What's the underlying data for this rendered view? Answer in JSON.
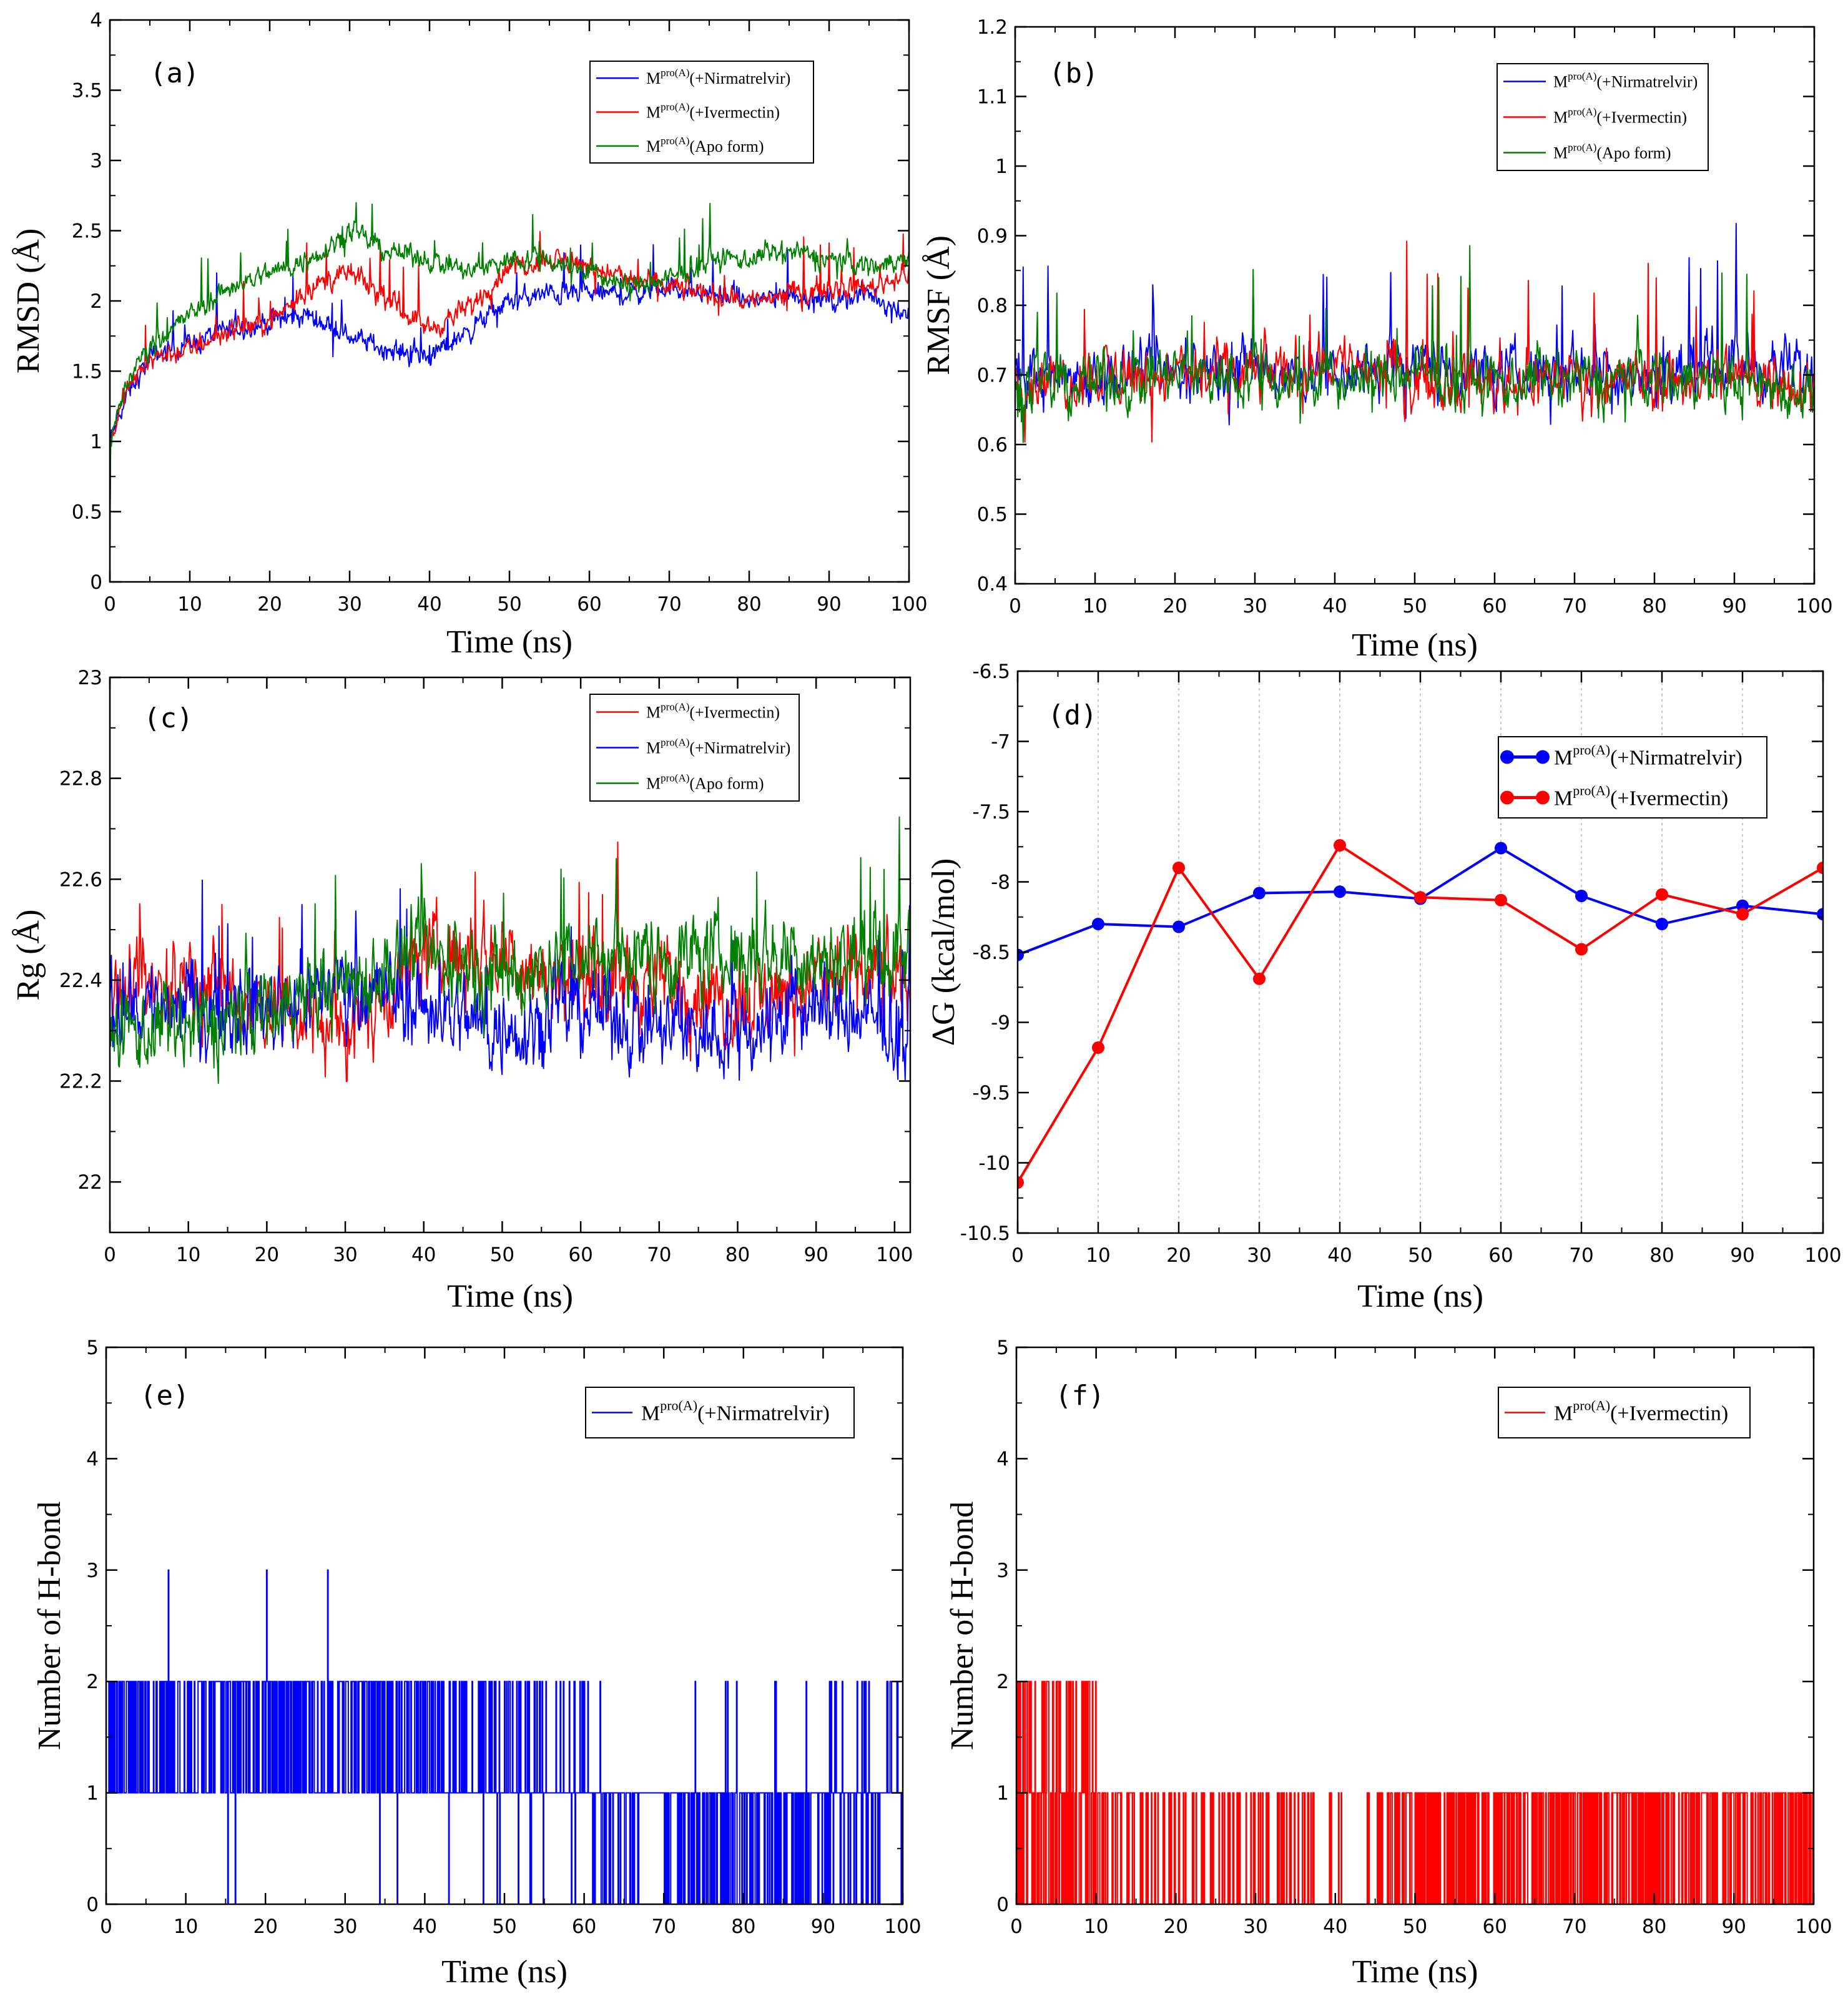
{
  "figure": {
    "description_panels": [
      "a",
      "b",
      "c",
      "d",
      "e",
      "f"
    ]
  },
  "legend_parts": {
    "base": "M",
    "superscript": "pro(A)"
  },
  "colors": {
    "nirmatrelvir": "#0000ff",
    "ivermectin": "#ff0000",
    "apo": "#008000",
    "grid": "#c8c8c8"
  },
  "chart_data": [
    {
      "id": "a",
      "type": "line",
      "panel_label": "(a)",
      "xlabel": "Time (ns)",
      "ylabel": "RMSD (Å)",
      "xlim": [
        0,
        100
      ],
      "ylim": [
        0,
        4
      ],
      "xticks": [
        0,
        10,
        20,
        30,
        40,
        50,
        60,
        70,
        80,
        90,
        100
      ],
      "yticks": [
        0,
        0.5,
        1,
        1.5,
        2,
        2.5,
        3,
        3.5,
        4
      ],
      "legend_position": "top-right",
      "series": [
        {
          "name": "(+Nirmatrelvir)",
          "color": "#0000ff",
          "x": [
            0,
            2,
            5,
            10,
            15,
            20,
            25,
            30,
            35,
            40,
            45,
            50,
            55,
            60,
            65,
            70,
            75,
            80,
            85,
            90,
            95,
            100
          ],
          "values": [
            1.0,
            1.3,
            1.6,
            1.7,
            1.8,
            1.85,
            1.9,
            1.75,
            1.65,
            1.6,
            1.8,
            2.0,
            2.05,
            2.05,
            2.05,
            2.1,
            2.05,
            2.0,
            2.05,
            2.0,
            2.05,
            1.9
          ]
        },
        {
          "name": "(+Ivermectin)",
          "color": "#ff0000",
          "x": [
            0,
            2,
            5,
            10,
            15,
            20,
            25,
            30,
            35,
            40,
            45,
            50,
            55,
            60,
            65,
            70,
            75,
            80,
            85,
            90,
            95,
            100
          ],
          "values": [
            1.0,
            1.35,
            1.6,
            1.65,
            1.8,
            1.85,
            2.1,
            2.2,
            2.0,
            1.8,
            1.95,
            2.25,
            2.3,
            2.25,
            2.15,
            2.1,
            2.05,
            2.0,
            2.05,
            2.1,
            2.1,
            2.2
          ]
        },
        {
          "name": "(Apo form)",
          "color": "#008000",
          "x": [
            0,
            2,
            5,
            10,
            15,
            20,
            25,
            30,
            35,
            40,
            45,
            50,
            55,
            60,
            65,
            70,
            75,
            80,
            85,
            90,
            95,
            100
          ],
          "values": [
            1.0,
            1.4,
            1.7,
            1.9,
            2.1,
            2.2,
            2.3,
            2.5,
            2.35,
            2.3,
            2.2,
            2.3,
            2.3,
            2.2,
            2.1,
            2.15,
            2.3,
            2.3,
            2.35,
            2.3,
            2.25,
            2.3
          ]
        }
      ]
    },
    {
      "id": "b",
      "type": "line",
      "panel_label": "(b)",
      "xlabel": "Time (ns)",
      "ylabel": "RMSF (Å)",
      "xlim": [
        0,
        100
      ],
      "ylim": [
        0.4,
        1.2
      ],
      "xticks": [
        0,
        10,
        20,
        30,
        40,
        50,
        60,
        70,
        80,
        90,
        100
      ],
      "yticks": [
        0.4,
        0.5,
        0.6,
        0.7,
        0.8,
        0.9,
        1,
        1.1,
        1.2
      ],
      "legend_position": "top-right",
      "series": [
        {
          "name": "(+Nirmatrelvir)",
          "color": "#0000ff",
          "x": [
            0,
            10,
            20,
            30,
            40,
            50,
            60,
            70,
            80,
            90,
            100
          ],
          "values": [
            0.7,
            0.7,
            0.7,
            0.71,
            0.7,
            0.72,
            0.7,
            0.71,
            0.7,
            0.72,
            0.7
          ]
        },
        {
          "name": "(+Ivermectin)",
          "color": "#ff0000",
          "x": [
            0,
            10,
            20,
            30,
            40,
            50,
            60,
            70,
            80,
            90,
            100
          ],
          "values": [
            0.69,
            0.7,
            0.7,
            0.7,
            0.72,
            0.7,
            0.69,
            0.7,
            0.69,
            0.7,
            0.69
          ]
        },
        {
          "name": "(Apo form)",
          "color": "#008000",
          "x": [
            0,
            10,
            20,
            30,
            40,
            50,
            60,
            70,
            80,
            90,
            100
          ],
          "values": [
            0.68,
            0.69,
            0.7,
            0.7,
            0.69,
            0.7,
            0.69,
            0.69,
            0.7,
            0.69,
            0.68
          ]
        }
      ]
    },
    {
      "id": "c",
      "type": "line",
      "panel_label": "(c)",
      "xlabel": "Time (ns)",
      "ylabel": "Rg (Å)",
      "xlim": [
        0,
        102
      ],
      "ylim": [
        21.9,
        23
      ],
      "xticks": [
        0,
        10,
        20,
        30,
        40,
        50,
        60,
        70,
        80,
        90,
        100
      ],
      "yticks": [
        22,
        22.2,
        22.4,
        22.6,
        22.8,
        23
      ],
      "legend_position": "top-right",
      "series": [
        {
          "name": "(+Ivermectin)",
          "color": "#ff0000",
          "x": [
            0,
            10,
            20,
            30,
            40,
            50,
            60,
            70,
            80,
            90,
            100
          ],
          "values": [
            22.35,
            22.4,
            22.35,
            22.3,
            22.45,
            22.45,
            22.4,
            22.4,
            22.35,
            22.4,
            22.4
          ]
        },
        {
          "name": "(+Nirmatrelvir)",
          "color": "#0000ff",
          "x": [
            0,
            10,
            20,
            30,
            40,
            50,
            60,
            70,
            80,
            90,
            100
          ],
          "values": [
            22.35,
            22.35,
            22.35,
            22.4,
            22.35,
            22.3,
            22.35,
            22.3,
            22.3,
            22.35,
            22.3
          ]
        },
        {
          "name": "(Apo form)",
          "color": "#008000",
          "x": [
            0,
            10,
            20,
            30,
            40,
            50,
            60,
            70,
            80,
            90,
            100
          ],
          "values": [
            22.3,
            22.3,
            22.35,
            22.4,
            22.45,
            22.4,
            22.45,
            22.45,
            22.45,
            22.45,
            22.45
          ]
        }
      ]
    },
    {
      "id": "d",
      "type": "line",
      "panel_label": "(d)",
      "xlabel": "Time (ns)",
      "ylabel": "ΔG (kcal/mol)",
      "xlim": [
        0,
        100
      ],
      "ylim": [
        -10.5,
        -6.5
      ],
      "xticks": [
        0,
        10,
        20,
        30,
        40,
        50,
        60,
        70,
        80,
        90,
        100
      ],
      "yticks": [
        -10.5,
        -10,
        -9.5,
        -9,
        -8.5,
        -8,
        -7.5,
        -7,
        -6.5
      ],
      "legend_position": "top-right",
      "grid": "vertical dotted",
      "series": [
        {
          "name": "(+Nirmatrelvir)",
          "color": "#0000ff",
          "x": [
            0,
            10,
            20,
            30,
            40,
            50,
            60,
            70,
            80,
            90,
            100
          ],
          "values": [
            -8.52,
            -8.3,
            -8.32,
            -8.08,
            -8.07,
            -8.12,
            -7.76,
            -8.1,
            -8.3,
            -8.17,
            -8.23
          ]
        },
        {
          "name": "(+Ivermectin)",
          "color": "#ff0000",
          "x": [
            0,
            10,
            20,
            30,
            40,
            50,
            60,
            70,
            80,
            90,
            100
          ],
          "values": [
            -10.14,
            -9.18,
            -7.9,
            -8.69,
            -7.74,
            -8.11,
            -8.13,
            -8.48,
            -8.09,
            -8.23,
            -7.9
          ]
        }
      ]
    },
    {
      "id": "e",
      "type": "line",
      "panel_label": "(e)",
      "xlabel": "Time (ns)",
      "ylabel": "Number of H-bond",
      "xlim": [
        0,
        100
      ],
      "ylim": [
        0,
        5
      ],
      "xticks": [
        0,
        10,
        20,
        30,
        40,
        50,
        60,
        70,
        80,
        90,
        100
      ],
      "yticks": [
        0,
        1,
        2,
        3,
        4,
        5
      ],
      "legend_position": "top-right",
      "series": [
        {
          "name": "(+Nirmatrelvir)",
          "color": "#0000ff",
          "x": [
            0,
            10,
            20,
            30,
            40,
            50,
            60,
            70,
            80,
            90,
            100
          ],
          "values": [
            1.5,
            1.5,
            1.5,
            1.5,
            1.4,
            1.2,
            1.1,
            0.6,
            0.6,
            0.8,
            1.0
          ]
        }
      ]
    },
    {
      "id": "f",
      "type": "line",
      "panel_label": "(f)",
      "xlabel": "Time (ns)",
      "ylabel": "Number of H-bond",
      "xlim": [
        0,
        100
      ],
      "ylim": [
        0,
        5
      ],
      "xticks": [
        0,
        10,
        20,
        30,
        40,
        50,
        60,
        70,
        80,
        90,
        100
      ],
      "yticks": [
        0,
        1,
        2,
        3,
        4,
        5
      ],
      "legend_position": "top-right",
      "series": [
        {
          "name": "(+Ivermectin)",
          "color": "#ff0000",
          "x": [
            0,
            10,
            20,
            30,
            40,
            50,
            60,
            70,
            80,
            90,
            100
          ],
          "values": [
            1.2,
            0.4,
            0.2,
            0.2,
            0.1,
            0.5,
            0.5,
            0.5,
            0.5,
            0.5,
            0.5
          ]
        }
      ]
    }
  ]
}
